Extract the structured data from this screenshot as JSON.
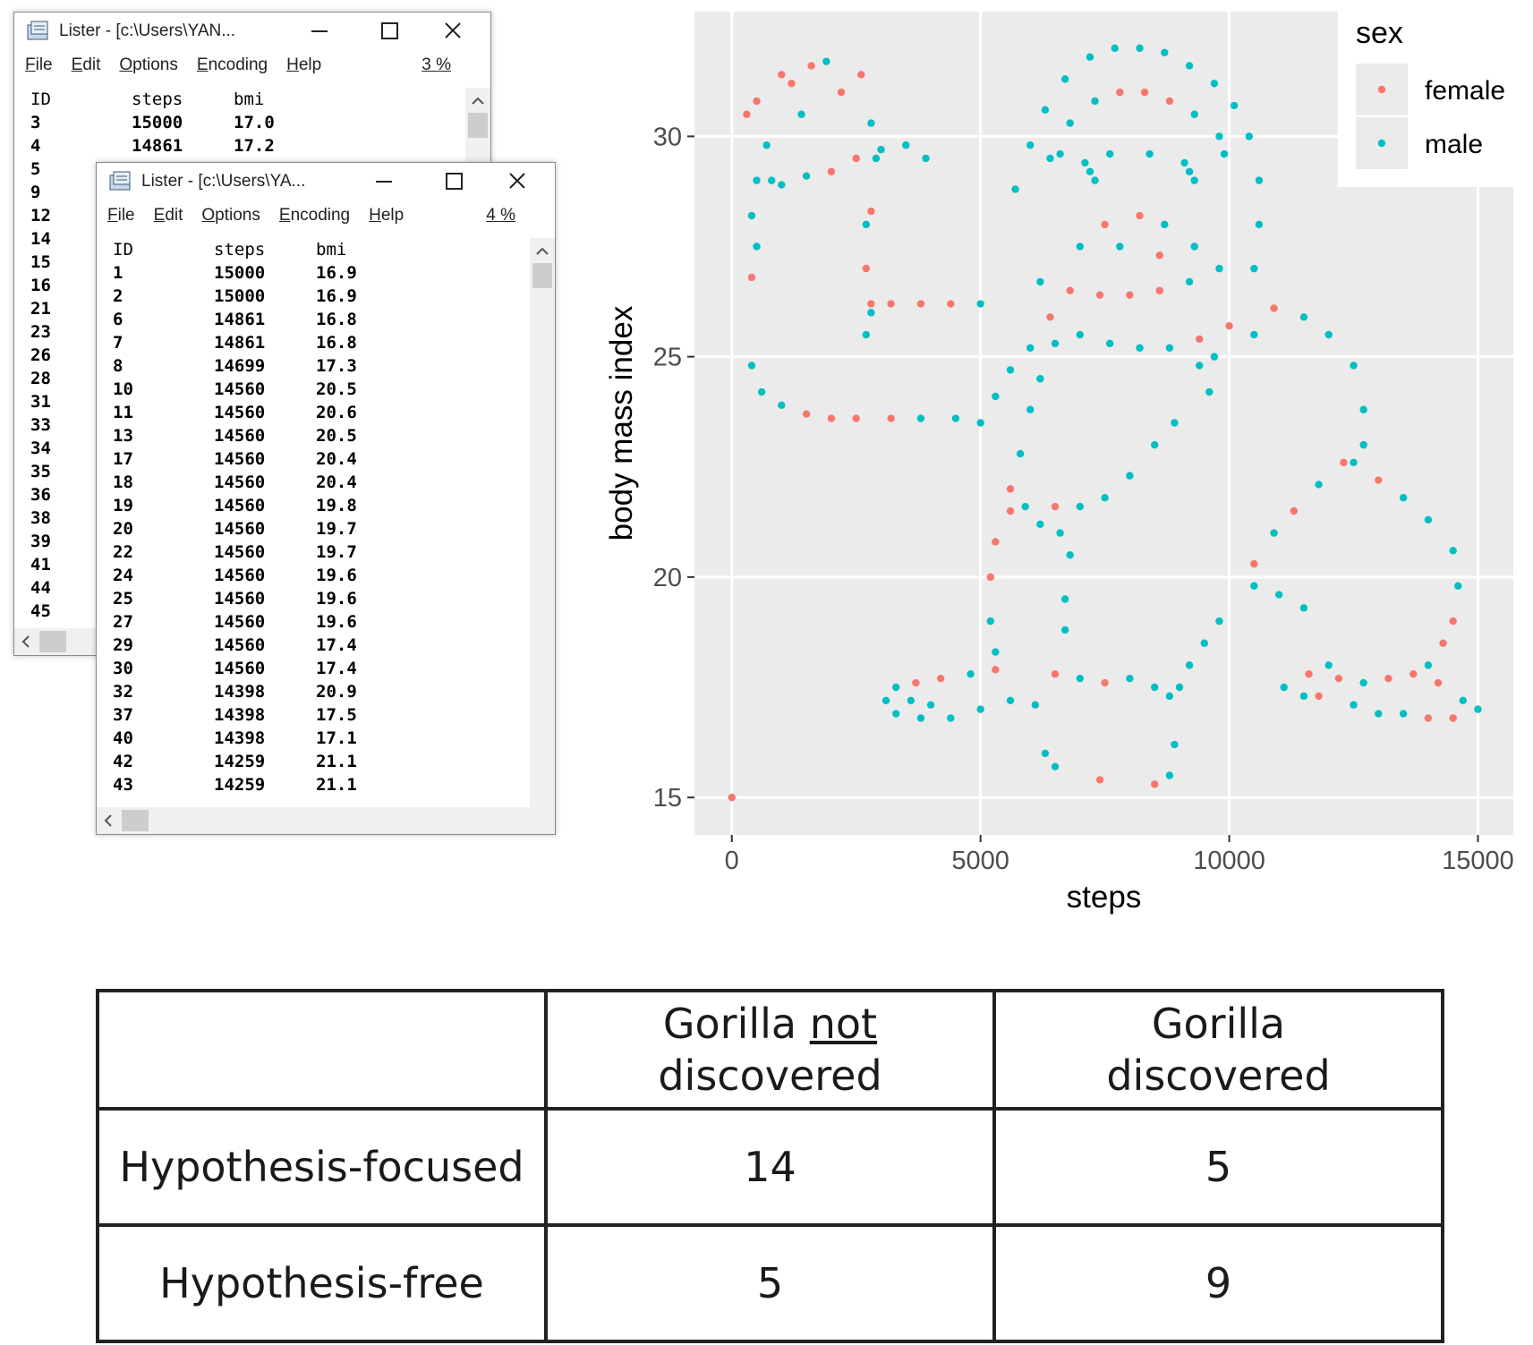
{
  "windows": [
    {
      "title": "Lister - [c:\\Users\\YAN...",
      "menu": [
        "File",
        "Edit",
        "Options",
        "Encoding",
        "Help"
      ],
      "percent": "3 %",
      "columns": [
        "ID",
        "steps",
        "bmi"
      ],
      "rows": [
        [
          "3",
          "15000",
          "17.0"
        ],
        [
          "4",
          "14861",
          "17.2"
        ],
        [
          "5"
        ],
        [
          "9"
        ],
        [
          "12"
        ],
        [
          "14"
        ],
        [
          "15"
        ],
        [
          "16"
        ],
        [
          "21"
        ],
        [
          "23"
        ],
        [
          "26"
        ],
        [
          "28"
        ],
        [
          "31"
        ],
        [
          "33"
        ],
        [
          "34"
        ],
        [
          "35"
        ],
        [
          "36"
        ],
        [
          "38"
        ],
        [
          "39"
        ],
        [
          "41"
        ],
        [
          "44"
        ],
        [
          "45"
        ]
      ]
    },
    {
      "title": "Lister - [c:\\Users\\YA...",
      "menu": [
        "File",
        "Edit",
        "Options",
        "Encoding",
        "Help"
      ],
      "percent": "4 %",
      "columns": [
        "ID",
        "steps",
        "bmi"
      ],
      "rows": [
        [
          "1",
          "15000",
          "16.9"
        ],
        [
          "2",
          "15000",
          "16.9"
        ],
        [
          "6",
          "14861",
          "16.8"
        ],
        [
          "7",
          "14861",
          "16.8"
        ],
        [
          "8",
          "14699",
          "17.3"
        ],
        [
          "10",
          "14560",
          "20.5"
        ],
        [
          "11",
          "14560",
          "20.6"
        ],
        [
          "13",
          "14560",
          "20.5"
        ],
        [
          "17",
          "14560",
          "20.4"
        ],
        [
          "18",
          "14560",
          "20.4"
        ],
        [
          "19",
          "14560",
          "19.8"
        ],
        [
          "20",
          "14560",
          "19.7"
        ],
        [
          "22",
          "14560",
          "19.7"
        ],
        [
          "24",
          "14560",
          "19.6"
        ],
        [
          "25",
          "14560",
          "19.6"
        ],
        [
          "27",
          "14560",
          "19.6"
        ],
        [
          "29",
          "14560",
          "17.4"
        ],
        [
          "30",
          "14560",
          "17.4"
        ],
        [
          "32",
          "14398",
          "20.9"
        ],
        [
          "37",
          "14398",
          "17.5"
        ],
        [
          "40",
          "14398",
          "17.1"
        ],
        [
          "42",
          "14259",
          "21.1"
        ],
        [
          "43",
          "14259",
          "21.1"
        ]
      ]
    }
  ],
  "chart_data": {
    "type": "scatter",
    "x_label": "steps",
    "y_label": "body mass index",
    "legend_title": "sex",
    "legend_position": "top-right",
    "grid": true,
    "xlim": [
      -751,
      15711
    ],
    "ylim": [
      14.15,
      32.83
    ],
    "xticks": [
      0,
      5000,
      10000,
      15000
    ],
    "yticks": [
      15,
      20,
      25,
      30
    ],
    "series": [
      {
        "name": "female",
        "color": "#f8766d",
        "x": [
          0,
          300,
          500,
          1000,
          1200,
          400,
          1600,
          2000,
          2500,
          2800,
          2700,
          2800,
          3200,
          3800,
          4400,
          1500,
          2000,
          2500,
          3200,
          6800,
          7400,
          8000,
          8600,
          7800,
          8300,
          8800,
          8200,
          7500,
          8600,
          5600,
          6500,
          5300,
          5200,
          5600,
          3700,
          4200,
          5300,
          6500,
          7500,
          13200,
          13700,
          14200,
          14500,
          14000,
          12200,
          11600,
          11800,
          7400,
          8500,
          10500,
          11300,
          12300,
          13000,
          14500,
          14300,
          10900,
          9400,
          10000,
          6400,
          2200,
          2600
        ],
        "y": [
          15,
          30.5,
          30.8,
          31.4,
          31.2,
          26.8,
          31.6,
          29.2,
          29.5,
          28.3,
          27.0,
          26.2,
          26.2,
          26.2,
          26.2,
          23.7,
          23.6,
          23.6,
          23.6,
          26.5,
          26.4,
          26.4,
          26.5,
          31.0,
          31.0,
          30.8,
          28.2,
          28.0,
          27.3,
          22.0,
          21.6,
          20.8,
          20.0,
          21.5,
          17.6,
          17.7,
          17.9,
          17.8,
          17.6,
          17.7,
          17.8,
          17.6,
          16.8,
          16.8,
          17.7,
          17.8,
          17.3,
          15.4,
          15.3,
          20.3,
          21.5,
          22.6,
          22.2,
          19.0,
          18.5,
          26.1,
          25.4,
          25.7,
          25.9,
          31.0,
          31.4
        ]
      },
      {
        "name": "male",
        "color": "#00bfc4",
        "x": [
          700,
          800,
          1400,
          1900,
          2800,
          2900,
          1000,
          1500,
          3000,
          3500,
          3900,
          400,
          600,
          1000,
          3800,
          4500,
          5000,
          5300,
          5600,
          6000,
          6500,
          500,
          400,
          500,
          2700,
          2800,
          2700,
          5000,
          5700,
          6000,
          6300,
          6700,
          7200,
          7700,
          8200,
          8700,
          9200,
          9700,
          10100,
          10400,
          10600,
          10600,
          10500,
          6400,
          6800,
          7300,
          9300,
          9800,
          7100,
          7200,
          7300,
          9100,
          9200,
          9300,
          6600,
          7600,
          8400,
          9900,
          7000,
          7800,
          8700,
          9300,
          6200,
          9200,
          9800,
          7000,
          7600,
          8200,
          8800,
          6200,
          6000,
          5800,
          5900,
          7000,
          7500,
          8000,
          8500,
          8900,
          9400,
          9600,
          9700,
          10500,
          11500,
          12000,
          12500,
          12700,
          12700,
          12500,
          13500,
          14000,
          14500,
          14600,
          11800,
          10900,
          5200,
          5300,
          6200,
          6600,
          6800,
          6700,
          6700,
          9800,
          9500,
          9200,
          9000,
          3100,
          3300,
          4800,
          3300,
          3800,
          4400,
          5000,
          5600,
          6100,
          3600,
          4000,
          7000,
          8000,
          8500,
          8800,
          11100,
          12700,
          14700,
          15000,
          11500,
          12500,
          13000,
          13500,
          12000,
          8800,
          6300,
          6500,
          8900,
          10500,
          11000,
          11500,
          14000
        ],
        "y": [
          29.8,
          29.0,
          30.5,
          31.7,
          30.3,
          29.5,
          28.9,
          29.1,
          29.7,
          29.8,
          29.5,
          24.8,
          24.2,
          23.9,
          23.6,
          23.6,
          23.5,
          24.1,
          24.7,
          25.2,
          25.3,
          27.5,
          28.2,
          29.0,
          25.5,
          26.0,
          28.0,
          26.2,
          28.8,
          29.8,
          30.6,
          31.3,
          31.8,
          32.0,
          32.0,
          31.9,
          31.6,
          31.2,
          30.7,
          30.0,
          29.0,
          28.0,
          27.0,
          29.5,
          30.3,
          30.8,
          30.5,
          30.0,
          29.4,
          29.2,
          29.0,
          29.4,
          29.2,
          29.0,
          29.6,
          29.6,
          29.6,
          29.6,
          27.5,
          27.5,
          28.0,
          27.5,
          26.7,
          26.7,
          27.0,
          25.5,
          25.3,
          25.2,
          25.2,
          24.5,
          23.8,
          22.8,
          21.6,
          21.6,
          21.8,
          22.3,
          23.0,
          23.5,
          24.8,
          24.2,
          25.0,
          25.5,
          25.9,
          25.5,
          24.8,
          23.8,
          23.0,
          22.6,
          21.8,
          21.3,
          20.6,
          19.8,
          22.1,
          21.0,
          19.0,
          18.3,
          21.2,
          21.0,
          20.5,
          19.5,
          18.8,
          19.0,
          18.5,
          18.0,
          17.5,
          17.2,
          17.5,
          17.8,
          16.9,
          16.8,
          16.8,
          17.0,
          17.2,
          17.1,
          17.2,
          17.1,
          17.7,
          17.7,
          17.5,
          17.3,
          17.5,
          17.6,
          17.2,
          17.0,
          17.3,
          17.1,
          16.9,
          16.9,
          18.0,
          15.5,
          16.0,
          15.7,
          16.2,
          19.8,
          19.6,
          19.3,
          18.0
        ]
      }
    ]
  },
  "table": {
    "columns": [
      {
        "line1": "Gorilla",
        "underlined": "not",
        "line2": "discovered"
      },
      {
        "line1": "Gorilla",
        "line2": "discovered"
      }
    ],
    "rows": [
      {
        "label": "Hypothesis-focused",
        "values": [
          14,
          5
        ]
      },
      {
        "label": "Hypothesis-free",
        "values": [
          5,
          9
        ]
      }
    ]
  }
}
